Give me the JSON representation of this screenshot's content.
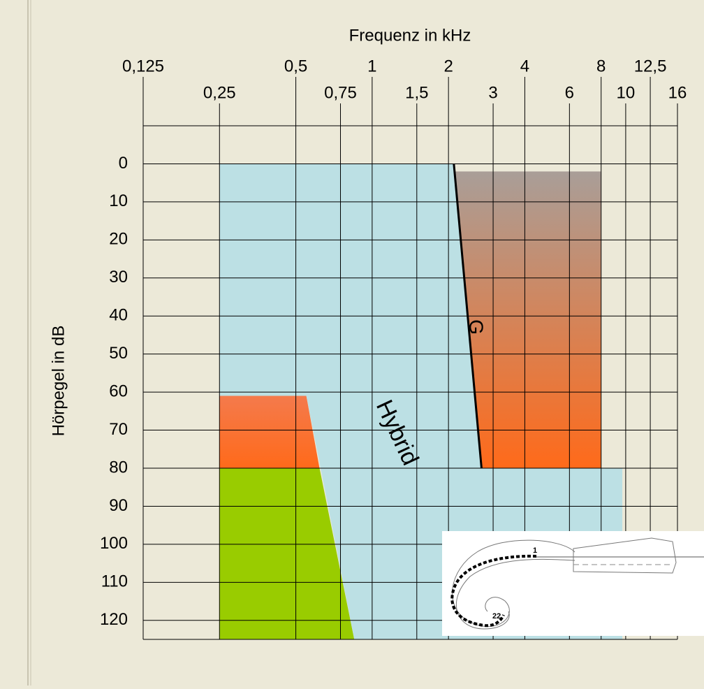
{
  "chart_data": {
    "type": "audiogram",
    "title": "Frequenz in kHz",
    "y_label": "Hörpegel in dB",
    "x_scale": "log",
    "xlim": [
      0.125,
      16
    ],
    "xticks": [
      {
        "value": 0.125,
        "label": "0,125"
      },
      {
        "value": 0.25,
        "label": "0,25"
      },
      {
        "value": 0.5,
        "label": "0,5"
      },
      {
        "value": 0.75,
        "label": "0,75"
      },
      1,
      {
        "value": 1.5,
        "label": "1,5"
      },
      2,
      3,
      4,
      6,
      8,
      10,
      {
        "value": 12.5,
        "label": "12,5"
      },
      16
    ],
    "ylim": [
      -10,
      125
    ],
    "yticks": [
      0,
      10,
      20,
      30,
      40,
      50,
      60,
      70,
      80,
      90,
      100,
      110,
      120
    ],
    "grid": true,
    "regions": [
      {
        "colors": [
          "#99cc00",
          "#99cc00"
        ],
        "x": [
          0.25,
          0.62,
          0.85,
          0.25
        ],
        "y": [
          80,
          80,
          125,
          125
        ]
      },
      {
        "colors": [
          "#f47a4c",
          "#ff6a1a"
        ],
        "x": [
          0.25,
          0.55,
          0.62,
          0.25
        ],
        "y": [
          61,
          61,
          80,
          80
        ]
      },
      {
        "colors": [
          "#a99e98",
          "#ff6a1a"
        ],
        "x": [
          2.1,
          8,
          8,
          2.7
        ],
        "y": [
          2,
          2,
          80,
          80
        ]
      },
      {
        "colors": [
          "#bce0e4",
          "#bce0e4"
        ],
        "x": [
          0.25,
          2.1,
          2.7,
          9.7,
          9.7,
          0.85,
          0.55,
          0.25
        ],
        "y": [
          0,
          0,
          80,
          80,
          125,
          125,
          61,
          61
        ]
      }
    ],
    "boundary": {
      "color": "#000000",
      "x": [
        2.1,
        2.7
      ],
      "y": [
        0,
        80
      ]
    },
    "annotations": [
      "Hybrid",
      "G"
    ]
  },
  "inset": {
    "labels": [
      "1",
      "22"
    ]
  }
}
